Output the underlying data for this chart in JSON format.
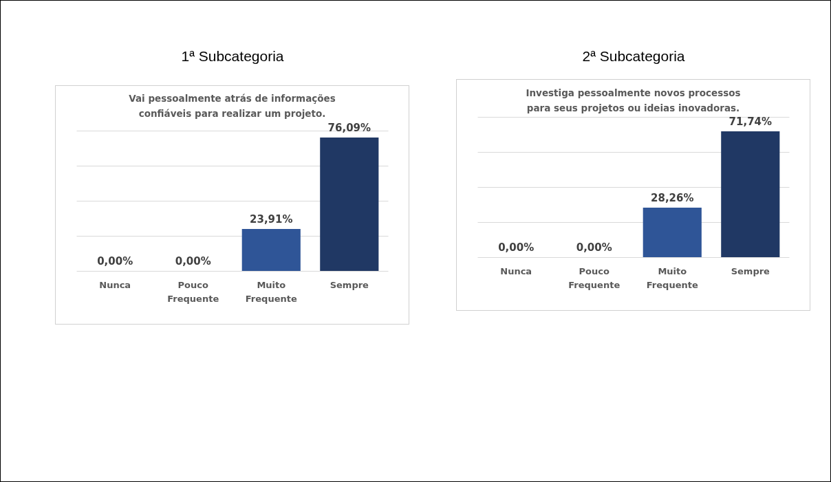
{
  "chart_data": [
    {
      "type": "bar",
      "title": "1ª Subcategoria",
      "subtitle": "Vai pessoalmente atrás de informações confiáveis para realizar um projeto.",
      "categories": [
        "Nunca",
        "Pouco Frequente",
        "Muito Frequente",
        "Sempre"
      ],
      "values": [
        0,
        0,
        23.91,
        76.09
      ],
      "colors": [
        "#2f5597",
        "#2f5597",
        "#2f5597",
        "#203864"
      ],
      "value_labels": [
        "0,00%",
        "0,00%",
        "23,91%",
        "76,09%"
      ],
      "ylim": [
        0,
        80
      ],
      "yticks": [
        {
          "value": 0,
          "label": null
        },
        {
          "value": 20,
          "label": null
        },
        {
          "value": 40,
          "label": null
        },
        {
          "value": 60,
          "label": null
        },
        {
          "value": 80,
          "label": null
        }
      ],
      "grid": "y",
      "tick_labels": "x"
    },
    {
      "type": "bar",
      "title": "2ª Subcategoria",
      "subtitle": "Investiga pessoalmente novos processos para seus projetos ou ideias inovadoras.",
      "categories": [
        "Nunca",
        "Pouco Frequente",
        "Muito Frequente",
        "Sempre"
      ],
      "values": [
        0,
        0,
        28.26,
        71.74
      ],
      "colors": [
        "#2f5597",
        "#2f5597",
        "#2f5597",
        "#203864"
      ],
      "value_labels": [
        "0,00%",
        "0,00%",
        "28,26%",
        "71,74%"
      ],
      "ylim": [
        0,
        80
      ],
      "yticks": [
        {
          "value": 0,
          "label": null
        },
        {
          "value": 20,
          "label": null
        },
        {
          "value": 40,
          "label": null
        },
        {
          "value": 60,
          "label": null
        },
        {
          "value": 80,
          "label": null
        }
      ],
      "grid": "y",
      "tick_labels": "x"
    }
  ]
}
